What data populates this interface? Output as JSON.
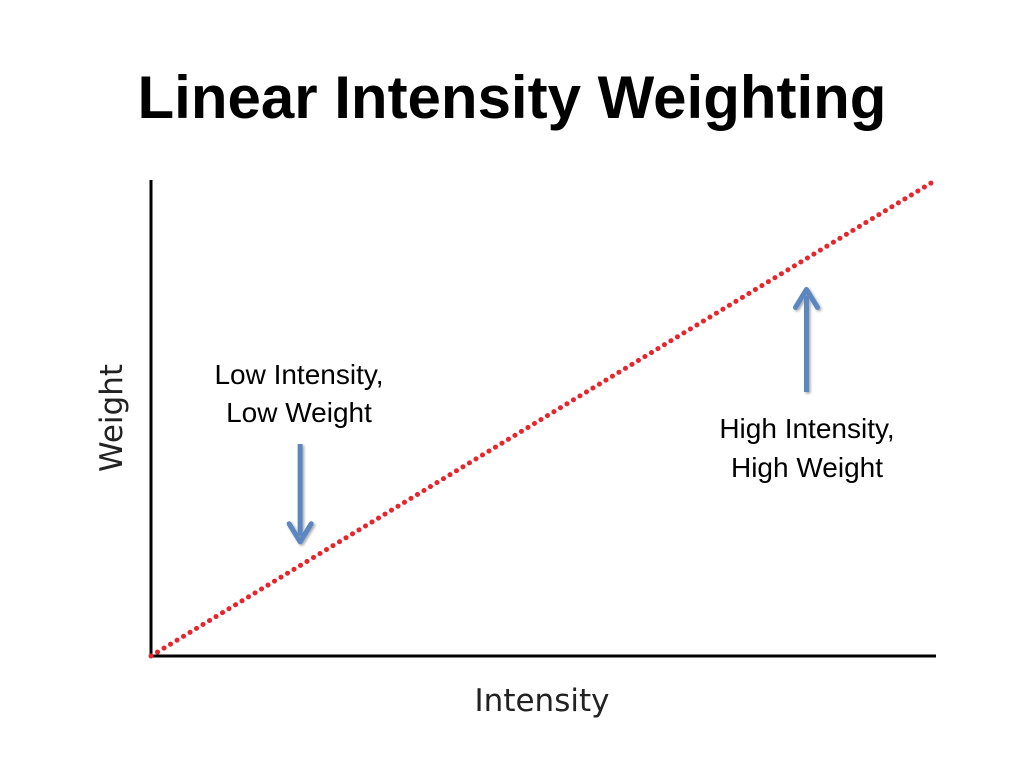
{
  "title": "Linear Intensity Weighting",
  "chart_data": {
    "type": "line",
    "title": "Linear Intensity Weighting",
    "xlabel": "Intensity",
    "ylabel": "Weight",
    "xlim": [
      0,
      1
    ],
    "ylim": [
      0,
      1
    ],
    "grid": false,
    "series": [
      {
        "x": [
          0,
          1
        ],
        "y": [
          0,
          1
        ],
        "style": "dotted",
        "color": "#e8252b"
      }
    ],
    "annotations": [
      {
        "lines": [
          "Low Intensity,",
          "Low Weight"
        ],
        "arrow": "down",
        "arrow_x": 0.19,
        "arrow_target_y": 0.24
      },
      {
        "lines": [
          "High Intensity,",
          "High Weight"
        ],
        "arrow": "up",
        "arrow_x": 0.835,
        "arrow_target_y": 0.77
      }
    ],
    "arrow_color": "#5b86c0"
  }
}
